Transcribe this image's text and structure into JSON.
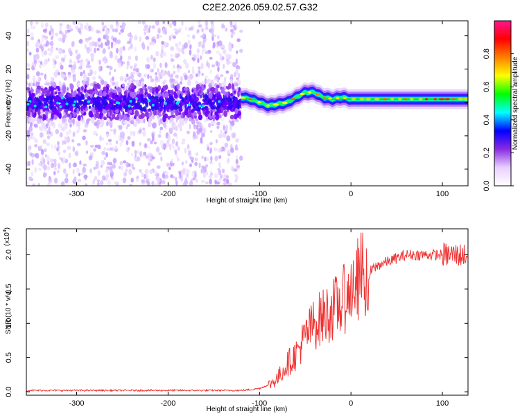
{
  "title": "C2E2.2026.059.02.57.G32",
  "chart_data": [
    {
      "type": "heatmap",
      "name": "spectrogram",
      "xlabel": "Height of straight line (km)",
      "ylabel": "Frequency (Hz)",
      "xlim": [
        -355,
        128
      ],
      "ylim": [
        -50,
        49
      ],
      "xticks": [
        -300,
        -200,
        -100,
        0,
        100
      ],
      "xtick_labels": [
        "-300",
        "-200",
        "-100",
        "0",
        "100"
      ],
      "yticks": [
        -40,
        -20,
        0,
        20,
        40
      ],
      "ytick_labels": [
        "-40",
        "-20",
        "0",
        "20",
        "40"
      ],
      "signal_trace": {
        "x": [
          -120,
          -110,
          -100,
          -90,
          -80,
          -70,
          -60,
          -50,
          -40,
          -30,
          -20,
          -10,
          0,
          10,
          20,
          40,
          60,
          80,
          100,
          128
        ],
        "y": [
          3,
          2,
          0,
          -2,
          -1,
          0,
          3,
          6,
          6,
          3,
          2,
          3,
          2,
          2,
          2,
          2,
          2,
          2,
          2,
          2
        ]
      },
      "noise_region": {
        "x_from": -355,
        "x_to": -120,
        "core_band_hz": [
          -10,
          10
        ]
      }
    },
    {
      "type": "colorbar",
      "name": "amplitude-colorbar",
      "label": "Normalized spectral amplitude",
      "range": [
        0.0,
        1.0
      ],
      "ticks": [
        0.0,
        0.2,
        0.4,
        0.6,
        0.8
      ],
      "tick_labels": [
        "0.0",
        "0.2",
        "0.4",
        "0.6",
        "0.8"
      ],
      "colors": [
        "#ffffff",
        "#e8d0ff",
        "#8a2be2",
        "#0000ff",
        "#00ffff",
        "#00ff00",
        "#ffff00",
        "#ff8000",
        "#ff0000",
        "#ff1493"
      ]
    },
    {
      "type": "line",
      "name": "snr",
      "xlabel": "Height of straight line (km)",
      "ylabel": "SNR (10 * v/v)",
      "yscale_label": "(x10",
      "yscale_exp": "4",
      "yscale_close": ")",
      "xlim": [
        -355,
        128
      ],
      "ylim": [
        -0.05,
        2.38
      ],
      "xticks": [
        -300,
        -200,
        -100,
        0,
        100
      ],
      "xtick_labels": [
        "-300",
        "-200",
        "-100",
        "0",
        "100"
      ],
      "yticks": [
        0.0,
        0.5,
        1.0,
        1.5,
        2.0
      ],
      "ytick_labels": [
        "0.0",
        "0.5",
        "1.0",
        "1.5",
        "2.0"
      ],
      "color": "#ee3333",
      "series": [
        {
          "name": "SNR",
          "x": [
            -355,
            -300,
            -200,
            -120,
            -110,
            -100,
            -90,
            -80,
            -70,
            -60,
            -50,
            -40,
            -30,
            -20,
            -10,
            0,
            5,
            10,
            15,
            20,
            30,
            40,
            50,
            60,
            70,
            80,
            90,
            100,
            110,
            128
          ],
          "y": [
            0.02,
            0.02,
            0.02,
            0.02,
            0.03,
            0.05,
            0.1,
            0.2,
            0.4,
            0.55,
            0.8,
            1.0,
            1.1,
            1.2,
            1.3,
            1.5,
            1.6,
            1.7,
            1.75,
            1.75,
            1.85,
            1.9,
            1.95,
            2.0,
            2.0,
            2.0,
            2.0,
            2.0,
            2.0,
            2.0
          ]
        }
      ]
    }
  ]
}
